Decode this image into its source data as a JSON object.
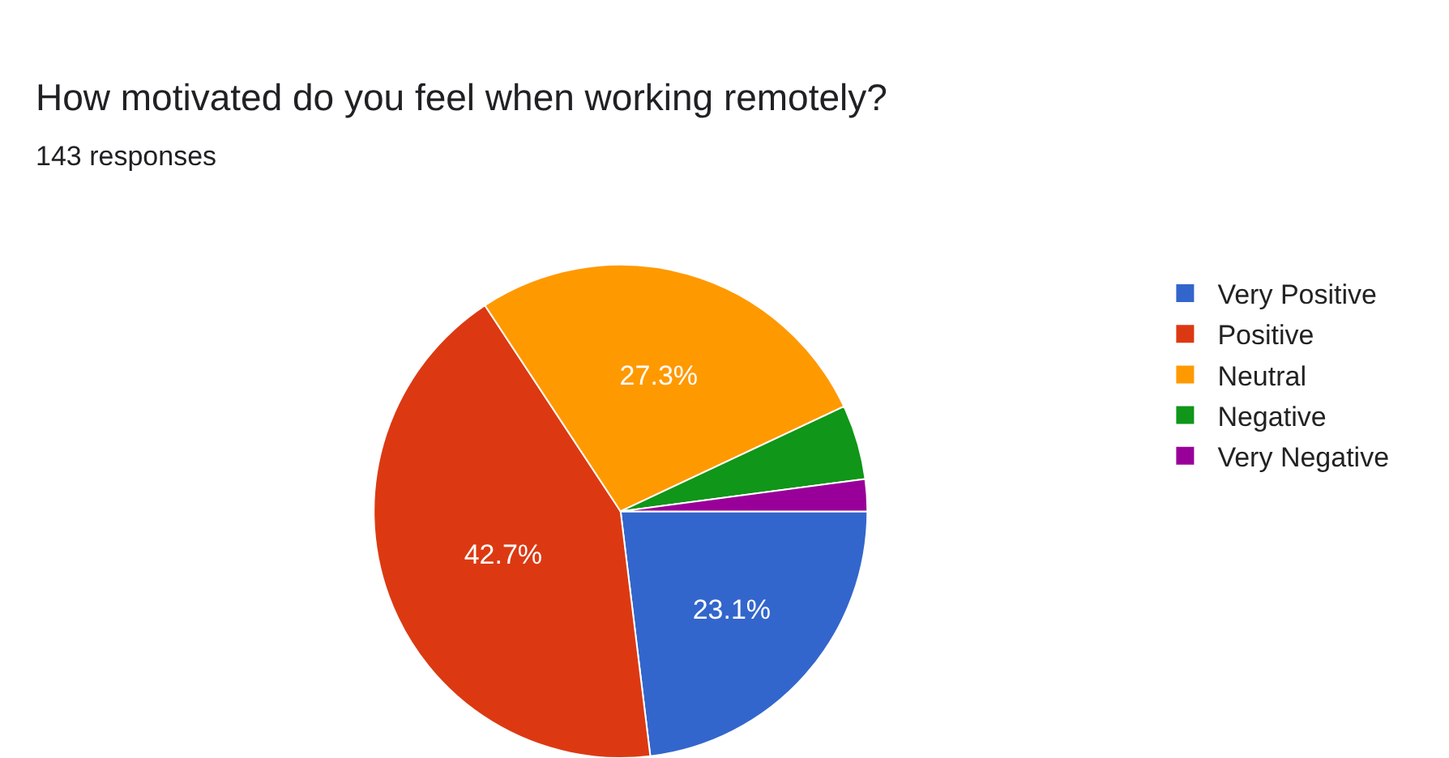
{
  "chart_data": {
    "type": "pie",
    "title": "How motivated do you feel when working remotely?",
    "subtitle": "143 responses",
    "categories": [
      "Very Positive",
      "Positive",
      "Neutral",
      "Negative",
      "Very Negative"
    ],
    "values": [
      23.1,
      42.7,
      27.3,
      4.9,
      2.1
    ],
    "colors": [
      "#3366cc",
      "#dc3912",
      "#ff9900",
      "#109618",
      "#990099"
    ],
    "value_labels": [
      "23.1%",
      "42.7%",
      "27.3%",
      null,
      null
    ],
    "legend": "right"
  }
}
